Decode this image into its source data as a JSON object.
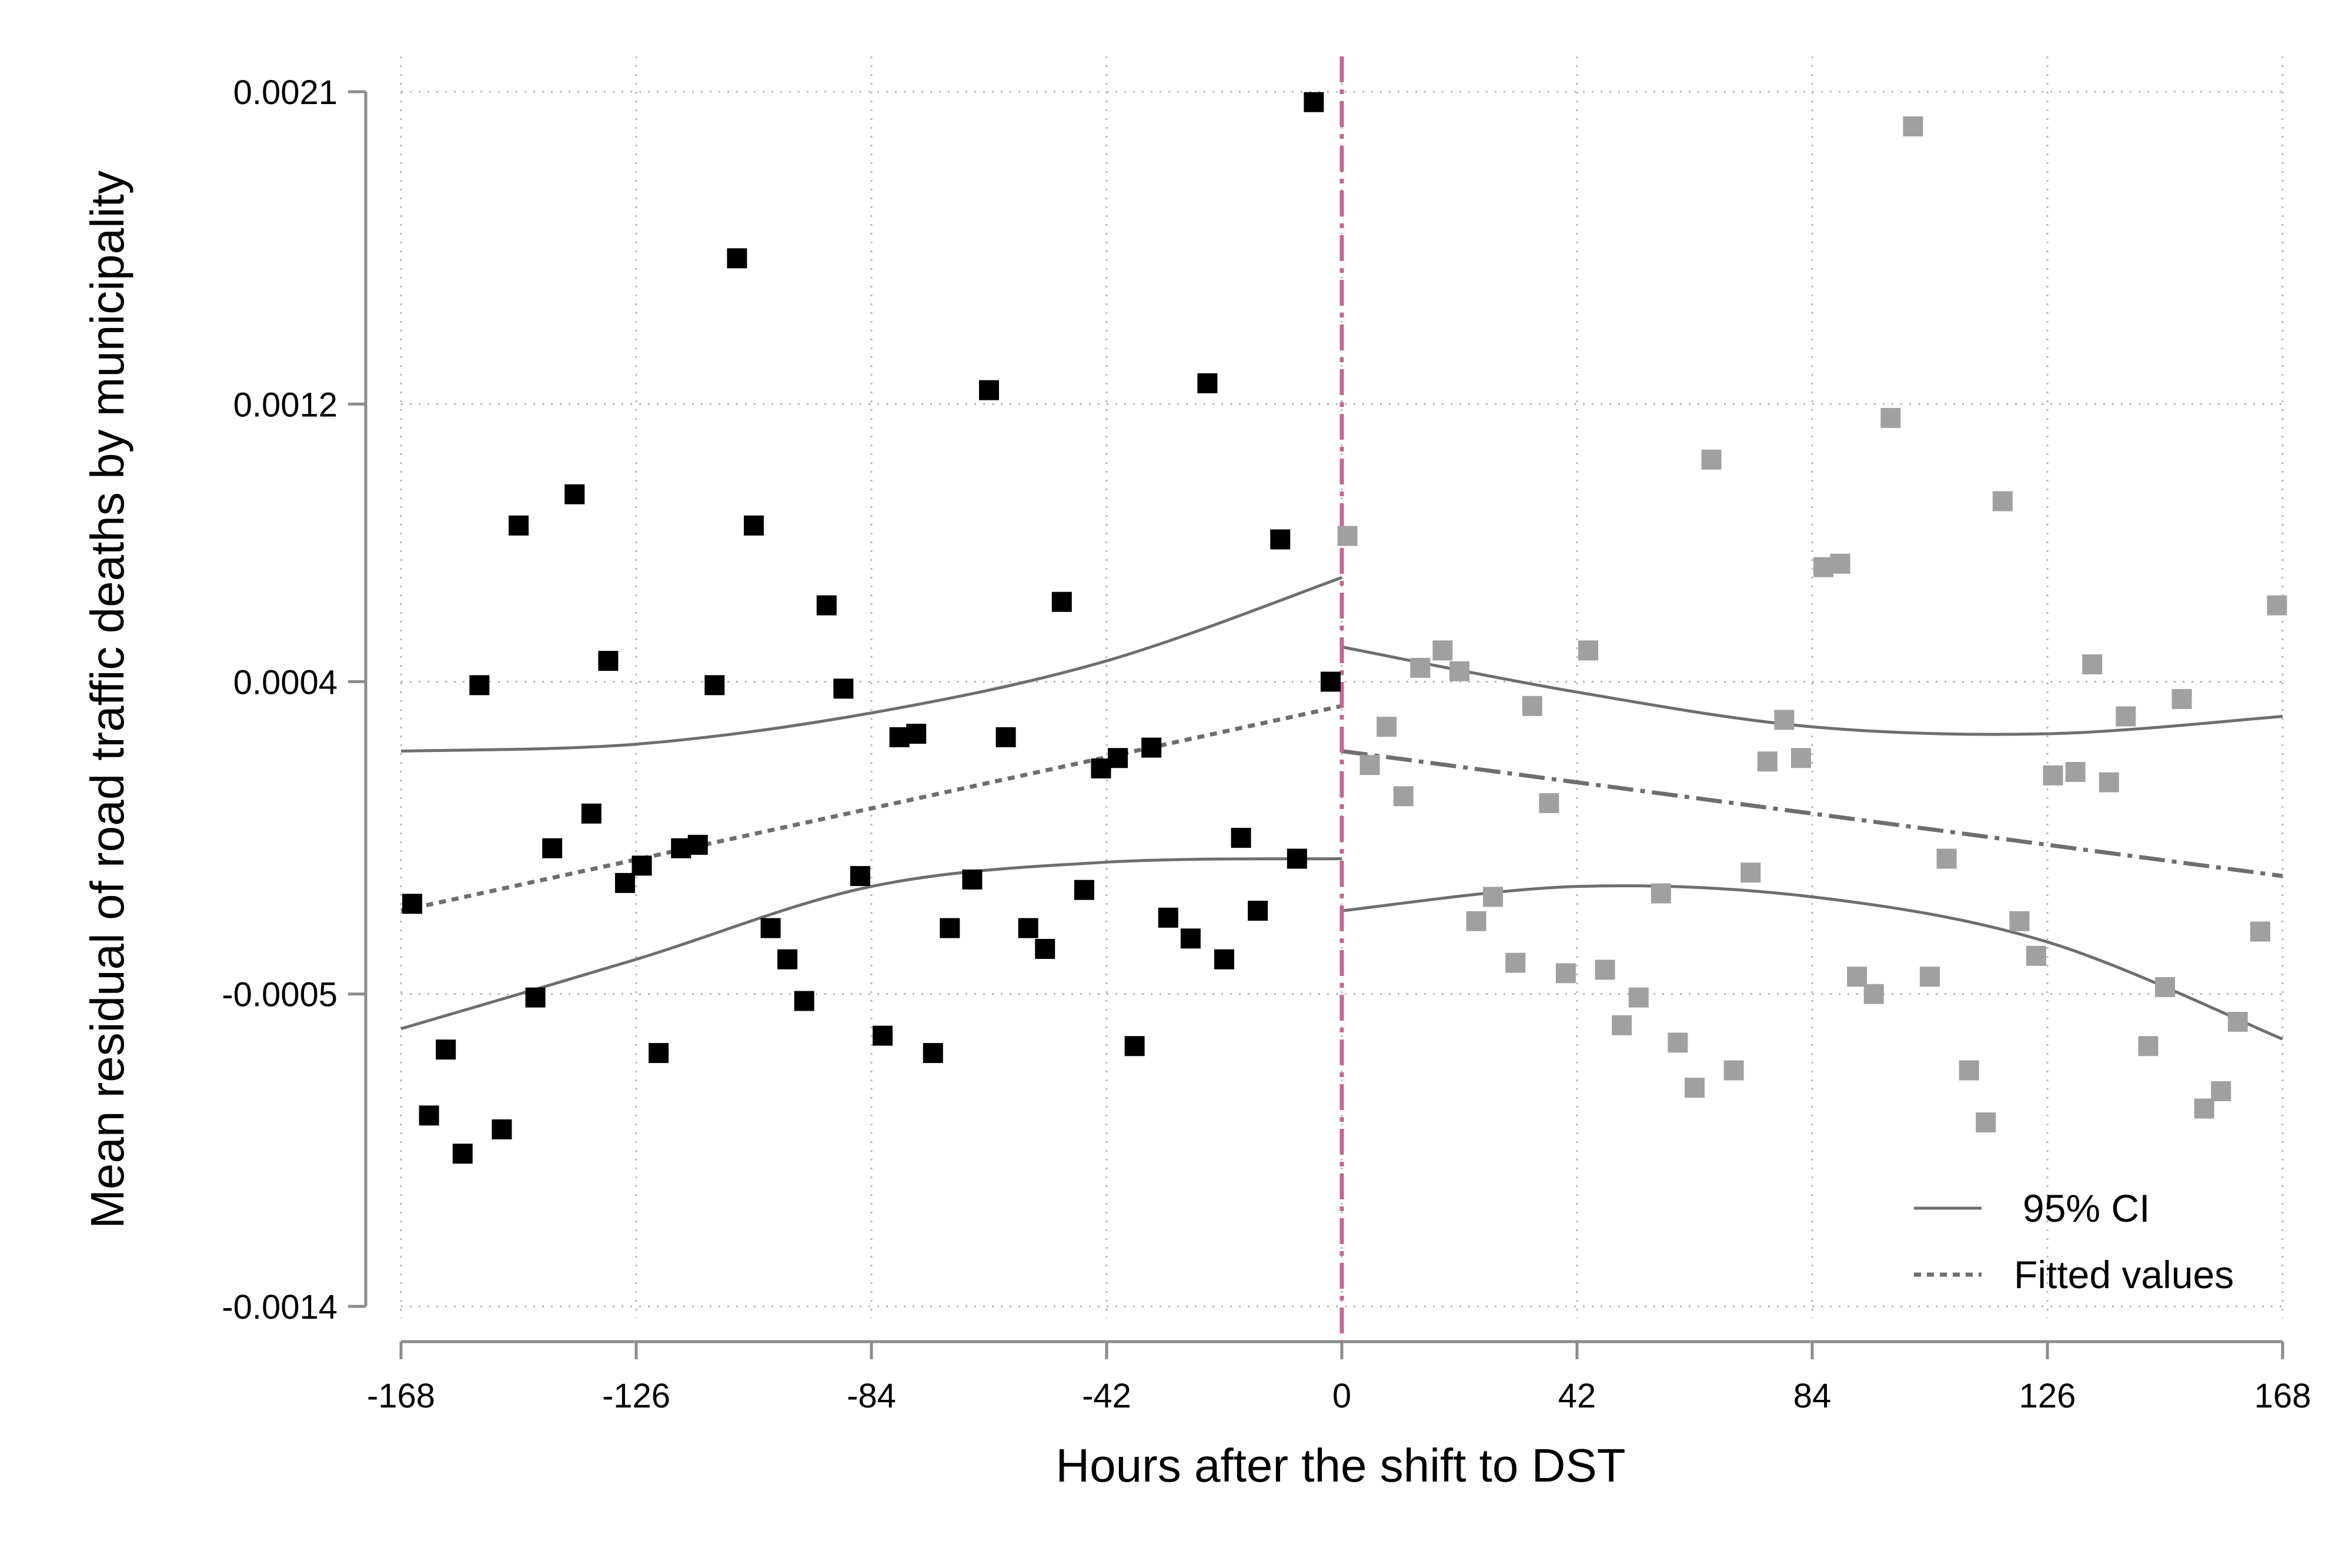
{
  "chart_data": {
    "type": "scatter",
    "xlabel": "Hours after the shift to DST",
    "ylabel": "Mean residual of road traffic deaths by municipality",
    "xlim": [
      -168,
      168
    ],
    "ylim": [
      -0.0014,
      0.0021
    ],
    "x_ticks": [
      -168,
      -126,
      -84,
      -42,
      0,
      42,
      84,
      126,
      168
    ],
    "x_tick_labels": [
      "-168",
      "-126",
      "-84",
      "-42",
      "0",
      "42",
      "84",
      "126",
      "168"
    ],
    "y_ticks": [
      -0.0014,
      -0.0005,
      0.0004,
      0.0012,
      0.0021
    ],
    "y_tick_labels": [
      "-0.0014",
      "-0.0005",
      "0.0004",
      "0.0012",
      "0.0021"
    ],
    "grid": true,
    "vertical_line": {
      "x": 0,
      "color": "#c86493",
      "style": "dash-dot"
    },
    "legend": {
      "position": "bottom-right",
      "entries": [
        {
          "label": "95% CI",
          "style": "solid"
        },
        {
          "label": "Fitted values",
          "style": "dotted"
        }
      ]
    },
    "series": [
      {
        "role": "before",
        "color": "#000000",
        "points": [
          [
            -166,
            -0.00024
          ],
          [
            -163,
            -0.00085
          ],
          [
            -160,
            -0.00066
          ],
          [
            -157,
            -0.00096
          ],
          [
            -154,
            0.00039
          ],
          [
            -150,
            -0.00089
          ],
          [
            -147,
            0.00085
          ],
          [
            -144,
            -0.00051
          ],
          [
            -141,
            -8e-05
          ],
          [
            -137,
            0.00094
          ],
          [
            -134,
            2e-05
          ],
          [
            -131,
            0.00046
          ],
          [
            -128,
            -0.00018
          ],
          [
            -125,
            -0.00013
          ],
          [
            -122,
            -0.00067
          ],
          [
            -118,
            -8e-05
          ],
          [
            -115,
            -7e-05
          ],
          [
            -112,
            0.00039
          ],
          [
            -108,
            0.00162
          ],
          [
            -105,
            0.00085
          ],
          [
            -102,
            -0.00031
          ],
          [
            -99,
            -0.0004
          ],
          [
            -96,
            -0.00052
          ],
          [
            -92,
            0.00062
          ],
          [
            -89,
            0.00038
          ],
          [
            -86,
            -0.00016
          ],
          [
            -82,
            -0.00062
          ],
          [
            -79,
            0.00024
          ],
          [
            -76,
            0.00025
          ],
          [
            -73,
            -0.00067
          ],
          [
            -70,
            -0.00031
          ],
          [
            -66,
            -0.00017
          ],
          [
            -63,
            0.00124
          ],
          [
            -60,
            0.00024
          ],
          [
            -56,
            -0.00031
          ],
          [
            -53,
            -0.00037
          ],
          [
            -50,
            0.00063
          ],
          [
            -46,
            -0.0002
          ],
          [
            -43,
            0.00015
          ],
          [
            -40,
            0.00018
          ],
          [
            -37,
            -0.00065
          ],
          [
            -34,
            0.00021
          ],
          [
            -31,
            -0.00028
          ],
          [
            -27,
            -0.00034
          ],
          [
            -24,
            0.00126
          ],
          [
            -21,
            -0.0004
          ],
          [
            -18,
            -5e-05
          ],
          [
            -15,
            -0.00026
          ],
          [
            -11,
            0.00081
          ],
          [
            -8,
            -0.00011
          ],
          [
            -5,
            0.00207
          ],
          [
            -2,
            0.0004
          ]
        ]
      },
      {
        "role": "after",
        "color": "#a0a0a0",
        "points": [
          [
            1,
            0.00082
          ],
          [
            5,
            0.00016
          ],
          [
            8,
            0.00027
          ],
          [
            11,
            7e-05
          ],
          [
            14,
            0.00044
          ],
          [
            18,
            0.00049
          ],
          [
            21,
            0.00043
          ],
          [
            24,
            -0.00029
          ],
          [
            27,
            -0.00022
          ],
          [
            31,
            -0.00041
          ],
          [
            34,
            0.00033
          ],
          [
            37,
            5e-05
          ],
          [
            40,
            -0.00044
          ],
          [
            44,
            0.00049
          ],
          [
            47,
            -0.00043
          ],
          [
            50,
            -0.00059
          ],
          [
            53,
            -0.00051
          ],
          [
            57,
            -0.00021
          ],
          [
            60,
            -0.00064
          ],
          [
            63,
            -0.00077
          ],
          [
            66,
            0.00104
          ],
          [
            70,
            -0.00072
          ],
          [
            73,
            -0.00015
          ],
          [
            76,
            0.00017
          ],
          [
            79,
            0.00029
          ],
          [
            82,
            0.00018
          ],
          [
            86,
            0.00073
          ],
          [
            89,
            0.00074
          ],
          [
            92,
            -0.00045
          ],
          [
            95,
            -0.0005
          ],
          [
            98,
            0.00116
          ],
          [
            102,
            0.002
          ],
          [
            105,
            -0.00045
          ],
          [
            108,
            -0.00011
          ],
          [
            112,
            -0.00072
          ],
          [
            115,
            -0.00087
          ],
          [
            118,
            0.00092
          ],
          [
            121,
            -0.00029
          ],
          [
            124,
            -0.00039
          ],
          [
            127,
            0.00013
          ],
          [
            131,
            0.00014
          ],
          [
            134,
            0.00045
          ],
          [
            137,
            0.00011
          ],
          [
            140,
            0.0003
          ],
          [
            144,
            -0.00065
          ],
          [
            147,
            -0.00048
          ],
          [
            150,
            0.00035
          ],
          [
            154,
            -0.00083
          ],
          [
            157,
            -0.00078
          ],
          [
            160,
            -0.00058
          ],
          [
            164,
            -0.00032
          ],
          [
            167,
            0.00062
          ]
        ]
      }
    ],
    "fits": [
      {
        "role": "before",
        "fitted": [
          [
            -168,
            -0.00026
          ],
          [
            0,
            0.00033
          ]
        ],
        "ci_upper": [
          [
            -168,
            0.0002
          ],
          [
            -126,
            0.00022
          ],
          [
            -84,
            0.00031
          ],
          [
            -42,
            0.00046
          ],
          [
            0,
            0.0007
          ]
        ],
        "ci_lower": [
          [
            -168,
            -0.0006
          ],
          [
            -126,
            -0.0004
          ],
          [
            -84,
            -0.00019
          ],
          [
            -42,
            -0.00012
          ],
          [
            0,
            -0.00011
          ]
        ]
      },
      {
        "role": "after",
        "fitted": [
          [
            0,
            0.0002
          ],
          [
            168,
            -0.00016
          ]
        ],
        "ci_upper": [
          [
            0,
            0.0005
          ],
          [
            42,
            0.00037
          ],
          [
            84,
            0.00027
          ],
          [
            126,
            0.00025
          ],
          [
            168,
            0.0003
          ]
        ],
        "ci_lower": [
          [
            0,
            -0.00026
          ],
          [
            42,
            -0.00019
          ],
          [
            84,
            -0.00022
          ],
          [
            126,
            -0.00035
          ],
          [
            168,
            -0.00063
          ]
        ]
      }
    ]
  }
}
